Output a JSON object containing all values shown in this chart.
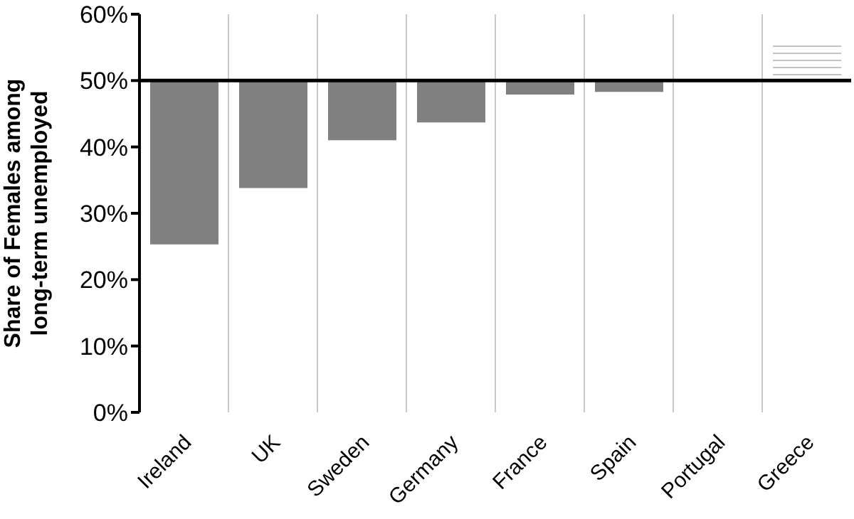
{
  "chart_data": {
    "type": "bar",
    "ylabel": "Share of Females among long-term unemployed",
    "categories": [
      "Ireland",
      "UK",
      "Sweden",
      "Germany",
      "France",
      "Spain",
      "Portugal",
      "Greece"
    ],
    "base": [
      50,
      50,
      50,
      50,
      50,
      50,
      50,
      50
    ],
    "values": [
      -24.7,
      -16.2,
      -9.0,
      -6.3,
      -2.1,
      -1.7,
      0.2,
      5.8
    ],
    "colors": [
      "#808080",
      "#808080",
      "#808080",
      "#808080",
      "#808080",
      "#808080",
      "#808080",
      "#ffffff"
    ],
    "ylim": [
      0,
      60
    ],
    "yticks": [
      {
        "value": 0,
        "label": "0%"
      },
      {
        "value": 10,
        "label": "10%"
      },
      {
        "value": 20,
        "label": "20%"
      },
      {
        "value": 30,
        "label": "30%"
      },
      {
        "value": 40,
        "label": "40%"
      },
      {
        "value": 50,
        "label": "50%"
      },
      {
        "value": 60,
        "label": "60%"
      }
    ],
    "ref_lines": [
      {
        "axis": "y",
        "value": 50,
        "color": "#000000"
      }
    ],
    "grid": "x"
  }
}
